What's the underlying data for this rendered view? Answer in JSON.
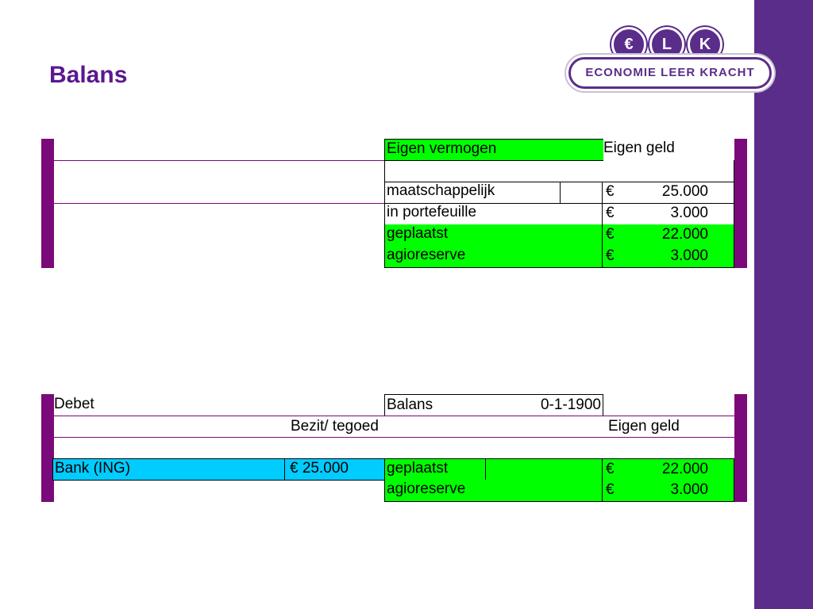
{
  "slide": {
    "title": "Balans"
  },
  "logo": {
    "letters": [
      "€",
      "L",
      "K"
    ],
    "text": "ECONOMIE LEER KRACHT"
  },
  "table1": {
    "header_left": "Eigen vermogen",
    "header_right": "Eigen geld",
    "rows": [
      {
        "label": "maatschappelijk",
        "currency": "€",
        "amount": "25.000"
      },
      {
        "label": "in portefeuille",
        "currency": "€",
        "amount": "3.000"
      },
      {
        "label": "geplaatst",
        "currency": "€",
        "amount": "22.000"
      },
      {
        "label": "agioreserve",
        "currency": "€",
        "amount": "3.000"
      }
    ]
  },
  "table2": {
    "debet": "Debet",
    "balans": "Balans",
    "date": "0-1-1900",
    "bezit": "Bezit/ tegoed",
    "eigen_geld": "Eigen geld",
    "bank_label": "Bank (ING)",
    "bank_amount": "€ 25.000",
    "rows": [
      {
        "label": "geplaatst",
        "currency": "€",
        "amount": "22.000"
      },
      {
        "label": "agioreserve",
        "currency": "€",
        "amount": "3.000"
      }
    ]
  },
  "colors": {
    "purple_bar": "#7a0a7a",
    "highlight_green": "#00ff00",
    "highlight_cyan": "#00ccff",
    "title_purple": "#5a1890",
    "sidebar": "#5b2d8a"
  }
}
